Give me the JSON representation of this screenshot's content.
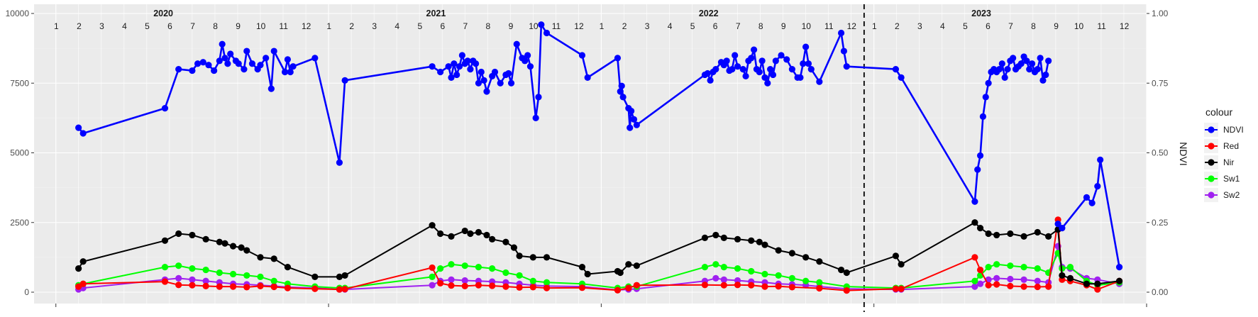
{
  "chart_data": {
    "type": "line",
    "xlabel": "",
    "ylabel_left": "",
    "ylabel_right": "NDVI",
    "ylim_left": [
      0,
      10000
    ],
    "ylim_right": [
      0,
      1
    ],
    "y_ticks_left": [
      0,
      2500,
      5000,
      7500,
      10000
    ],
    "y_tick_labels_left": [
      "0",
      "2500",
      "5000",
      "7500",
      "10000"
    ],
    "y_ticks_right": [
      0,
      0.25,
      0.5,
      0.75,
      1
    ],
    "y_tick_labels_right": [
      "0.00",
      "0.25",
      "0.50",
      "0.75",
      "1.00"
    ],
    "x_range": [
      2019.92,
      2024.0
    ],
    "grid": true,
    "legend_title": "colour",
    "legend_position": "right",
    "years": [
      {
        "label": "2020",
        "x": 2020.55
      },
      {
        "label": "2021",
        "x": 2021.55
      },
      {
        "label": "2022",
        "x": 2022.55
      },
      {
        "label": "2023",
        "x": 2023.55
      }
    ],
    "months": [
      "1",
      "2",
      "3",
      "4",
      "5",
      "6",
      "7",
      "8",
      "9",
      "10",
      "11",
      "12"
    ],
    "vline": {
      "x": 2022.964,
      "style": "dashed"
    },
    "series": [
      {
        "name": "NDVI",
        "color": "#0000ff",
        "axis": "right",
        "x": [
          2020.083,
          2020.1,
          2020.4,
          2020.45,
          2020.5,
          2020.52,
          2020.54,
          2020.56,
          2020.58,
          2020.6,
          2020.61,
          2020.62,
          2020.63,
          2020.64,
          2020.66,
          2020.67,
          2020.69,
          2020.7,
          2020.72,
          2020.74,
          2020.75,
          2020.77,
          2020.79,
          2020.8,
          2020.84,
          2020.85,
          2020.86,
          2020.87,
          2020.95,
          2021.04,
          2021.06,
          2021.38,
          2021.41,
          2021.44,
          2021.45,
          2021.46,
          2021.47,
          2021.48,
          2021.49,
          2021.5,
          2021.51,
          2021.52,
          2021.53,
          2021.54,
          2021.55,
          2021.56,
          2021.57,
          2021.58,
          2021.6,
          2021.61,
          2021.63,
          2021.65,
          2021.66,
          2021.67,
          2021.69,
          2021.71,
          2021.72,
          2021.73,
          2021.74,
          2021.76,
          2021.77,
          2021.78,
          2021.8,
          2021.93,
          2021.95,
          2022.06,
          2022.07,
          2022.075,
          2022.08,
          2022.1,
          2022.105,
          2022.11,
          2022.12,
          2022.13,
          2022.38,
          2022.39,
          2022.4,
          2022.41,
          2022.42,
          2022.44,
          2022.45,
          2022.46,
          2022.47,
          2022.48,
          2022.49,
          2022.5,
          2022.52,
          2022.53,
          2022.54,
          2022.55,
          2022.56,
          2022.57,
          2022.58,
          2022.59,
          2022.6,
          2022.61,
          2022.62,
          2022.63,
          2022.64,
          2022.66,
          2022.68,
          2022.7,
          2022.72,
          2022.73,
          2022.74,
          2022.75,
          2022.76,
          2022.77,
          2022.8,
          2022.88,
          2022.89,
          2022.9,
          2023.08,
          2023.1,
          2023.37,
          2023.38,
          2023.39,
          2023.4,
          2023.41,
          2023.42,
          2023.43,
          2023.44,
          2023.45,
          2023.46,
          2023.47,
          2023.48,
          2023.49,
          2023.5,
          2023.51,
          2023.52,
          2023.53,
          2023.54,
          2023.55,
          2023.56,
          2023.57,
          2023.58,
          2023.59,
          2023.6,
          2023.61,
          2023.62,
          2023.63,
          2023.64
        ],
        "y": [
          0.59,
          0.57,
          0.66,
          0.8,
          0.795,
          0.82,
          0.825,
          0.815,
          0.795,
          0.83,
          0.89,
          0.84,
          0.82,
          0.855,
          0.83,
          0.82,
          0.8,
          0.865,
          0.82,
          0.8,
          0.815,
          0.84,
          0.73,
          0.865,
          0.79,
          0.835,
          0.79,
          0.81,
          0.84,
          0.465,
          0.76,
          0.81,
          0.79,
          0.81,
          0.77,
          0.82,
          0.78,
          0.81,
          0.85,
          0.82,
          0.83,
          0.8,
          0.83,
          0.82,
          0.75,
          0.79,
          0.76,
          0.72,
          0.775,
          0.79,
          0.75,
          0.78,
          0.785,
          0.75,
          0.89,
          0.84,
          0.83,
          0.85,
          0.81,
          0.625,
          0.7,
          0.96,
          0.93,
          0.85,
          0.77,
          0.84,
          0.72,
          0.74,
          0.7,
          0.66,
          0.59,
          0.65,
          0.62,
          0.6,
          0.78,
          0.785,
          0.76,
          0.79,
          0.8,
          0.825,
          0.815,
          0.83,
          0.795,
          0.8,
          0.85,
          0.81,
          0.8,
          0.775,
          0.83,
          0.84,
          0.87,
          0.8,
          0.79,
          0.83,
          0.77,
          0.75,
          0.8,
          0.78,
          0.83,
          0.85,
          0.835,
          0.8,
          0.77,
          0.77,
          0.82,
          0.88,
          0.82,
          0.8,
          0.755,
          0.93,
          0.865,
          0.81,
          0.8,
          0.77,
          0.325,
          0.44,
          0.49,
          0.63,
          0.7,
          0.75,
          0.79,
          0.8,
          0.79,
          0.8,
          0.82,
          0.77,
          0.8,
          0.83,
          0.84,
          0.8,
          0.81,
          0.82,
          0.845,
          0.83,
          0.8,
          0.82,
          0.79,
          0.8,
          0.84,
          0.76,
          0.78,
          0.83
        ],
        "x2": [
          2023.675,
          2023.69,
          2023.78,
          2023.8,
          2023.82,
          2023.83,
          2023.9
        ],
        "y2": [
          0.245,
          0.23,
          0.34,
          0.32,
          0.38,
          0.475,
          0.09
        ]
      },
      {
        "name": "Red",
        "color": "#ff0000",
        "axis": "left",
        "x": [
          2020.083,
          2020.1,
          2020.4,
          2020.45,
          2020.5,
          2020.55,
          2020.6,
          2020.65,
          2020.7,
          2020.75,
          2020.8,
          2020.85,
          2020.95,
          2021.04,
          2021.06,
          2021.38,
          2021.41,
          2021.45,
          2021.5,
          2021.55,
          2021.6,
          2021.65,
          2021.7,
          2021.75,
          2021.8,
          2021.93,
          2022.06,
          2022.1,
          2022.13,
          2022.38,
          2022.45,
          2022.5,
          2022.55,
          2022.6,
          2022.65,
          2022.7,
          2022.8,
          2022.9,
          2023.08,
          2023.1,
          2023.37,
          2023.39,
          2023.42,
          2023.45,
          2023.5,
          2023.55,
          2023.6,
          2023.64,
          2023.675,
          2023.69,
          2023.72,
          2023.78,
          2023.82,
          2023.9
        ],
        "y": [
          200,
          300,
          380,
          260,
          250,
          220,
          200,
          200,
          180,
          220,
          190,
          150,
          120,
          100,
          110,
          880,
          320,
          240,
          220,
          250,
          230,
          200,
          170,
          180,
          150,
          160,
          70,
          150,
          250,
          260,
          250,
          260,
          250,
          200,
          210,
          180,
          140,
          60,
          120,
          120,
          1250,
          800,
          250,
          280,
          220,
          200,
          190,
          200,
          2600,
          450,
          400,
          250,
          100,
          400
        ]
      },
      {
        "name": "Nir",
        "color": "#000000",
        "axis": "left",
        "x": [
          2020.083,
          2020.1,
          2020.4,
          2020.45,
          2020.5,
          2020.55,
          2020.6,
          2020.62,
          2020.65,
          2020.68,
          2020.7,
          2020.75,
          2020.8,
          2020.85,
          2020.95,
          2021.04,
          2021.06,
          2021.38,
          2021.41,
          2021.45,
          2021.5,
          2021.52,
          2021.55,
          2021.58,
          2021.6,
          2021.65,
          2021.68,
          2021.7,
          2021.75,
          2021.8,
          2021.93,
          2021.95,
          2022.06,
          2022.07,
          2022.1,
          2022.13,
          2022.38,
          2022.42,
          2022.45,
          2022.5,
          2022.55,
          2022.58,
          2022.6,
          2022.65,
          2022.7,
          2022.75,
          2022.8,
          2022.88,
          2022.9,
          2023.08,
          2023.1,
          2023.37,
          2023.39,
          2023.42,
          2023.45,
          2023.5,
          2023.55,
          2023.6,
          2023.64,
          2023.675,
          2023.69,
          2023.72,
          2023.78,
          2023.82,
          2023.9
        ],
        "y": [
          850,
          1100,
          1850,
          2100,
          2050,
          1900,
          1800,
          1750,
          1650,
          1600,
          1500,
          1250,
          1200,
          900,
          550,
          550,
          600,
          2400,
          2100,
          2000,
          2200,
          2100,
          2150,
          2050,
          1900,
          1800,
          1600,
          1300,
          1250,
          1250,
          900,
          650,
          750,
          700,
          1000,
          950,
          1950,
          2050,
          1950,
          1900,
          1850,
          1800,
          1700,
          1500,
          1400,
          1250,
          1100,
          800,
          700,
          1300,
          1000,
          2500,
          2300,
          2100,
          2050,
          2100,
          2000,
          2150,
          2000,
          2250,
          600,
          500,
          300,
          300,
          400
        ]
      },
      {
        "name": "Sw1",
        "color": "#00ff00",
        "axis": "left",
        "x": [
          2020.083,
          2020.1,
          2020.4,
          2020.45,
          2020.5,
          2020.55,
          2020.6,
          2020.65,
          2020.7,
          2020.75,
          2020.8,
          2020.85,
          2020.95,
          2021.04,
          2021.06,
          2021.38,
          2021.41,
          2021.45,
          2021.5,
          2021.55,
          2021.6,
          2021.65,
          2021.7,
          2021.75,
          2021.8,
          2021.93,
          2022.06,
          2022.1,
          2022.13,
          2022.38,
          2022.42,
          2022.45,
          2022.5,
          2022.55,
          2022.6,
          2022.65,
          2022.7,
          2022.75,
          2022.8,
          2022.9,
          2023.08,
          2023.1,
          2023.37,
          2023.39,
          2023.42,
          2023.45,
          2023.5,
          2023.55,
          2023.6,
          2023.64,
          2023.675,
          2023.69,
          2023.72,
          2023.78,
          2023.82,
          2023.9
        ],
        "y": [
          250,
          300,
          900,
          950,
          850,
          800,
          700,
          650,
          600,
          550,
          400,
          300,
          200,
          150,
          150,
          550,
          850,
          1000,
          950,
          900,
          850,
          700,
          600,
          400,
          350,
          300,
          150,
          200,
          200,
          900,
          1000,
          900,
          850,
          750,
          650,
          600,
          500,
          400,
          350,
          200,
          150,
          150,
          400,
          600,
          900,
          1000,
          950,
          900,
          850,
          700,
          1400,
          850,
          900,
          400,
          250,
          350
        ]
      },
      {
        "name": "Sw2",
        "color": "#a020f0",
        "axis": "left",
        "x": [
          2020.083,
          2020.1,
          2020.4,
          2020.45,
          2020.5,
          2020.55,
          2020.6,
          2020.65,
          2020.7,
          2020.75,
          2020.8,
          2020.85,
          2020.95,
          2021.04,
          2021.06,
          2021.38,
          2021.41,
          2021.45,
          2021.5,
          2021.55,
          2021.6,
          2021.65,
          2021.7,
          2021.75,
          2021.8,
          2021.93,
          2022.06,
          2022.1,
          2022.13,
          2022.38,
          2022.42,
          2022.45,
          2022.5,
          2022.55,
          2022.6,
          2022.65,
          2022.7,
          2022.75,
          2022.8,
          2022.9,
          2023.08,
          2023.1,
          2023.37,
          2023.39,
          2023.42,
          2023.45,
          2023.5,
          2023.55,
          2023.6,
          2023.64,
          2023.675,
          2023.69,
          2023.72,
          2023.78,
          2023.82,
          2023.9
        ],
        "y": [
          100,
          150,
          450,
          500,
          450,
          400,
          350,
          300,
          280,
          250,
          220,
          180,
          150,
          100,
          100,
          250,
          400,
          450,
          420,
          400,
          380,
          350,
          300,
          250,
          220,
          200,
          80,
          100,
          120,
          400,
          500,
          450,
          420,
          380,
          350,
          300,
          280,
          250,
          200,
          120,
          100,
          100,
          200,
          300,
          450,
          500,
          470,
          450,
          400,
          350,
          1650,
          900,
          850,
          500,
          450,
          300
        ]
      }
    ]
  }
}
